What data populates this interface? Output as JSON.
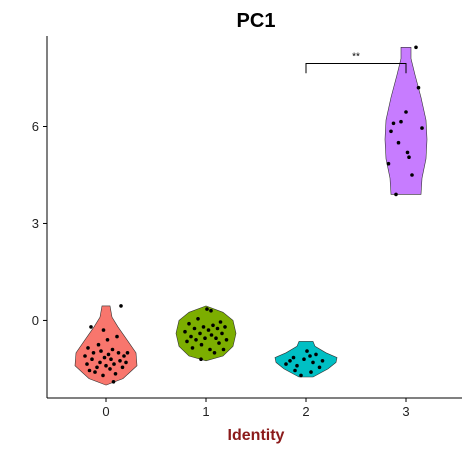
{
  "chart_data": {
    "type": "violin",
    "title": "PC1",
    "xlabel": "Identity",
    "ylabel": "",
    "xlabel_color": "#8b1a1a",
    "categories": [
      "0",
      "1",
      "2",
      "3"
    ],
    "ylim": [
      -2.4,
      8.8
    ],
    "yticks": [
      0,
      3,
      6
    ],
    "yticks_labels": [
      "0",
      "3",
      "6"
    ],
    "grid": false,
    "legend": "none",
    "colors": [
      "#f8766d",
      "#7cae00",
      "#00bfc4",
      "#c77cff"
    ],
    "violins": [
      {
        "category": "0",
        "min": -2.0,
        "max": 0.45,
        "profile": [
          [
            -2.0,
            0.0
          ],
          [
            -1.8,
            0.34
          ],
          [
            -1.4,
            0.62
          ],
          [
            -1.0,
            0.6
          ],
          [
            -0.6,
            0.42
          ],
          [
            -0.2,
            0.24
          ],
          [
            0.1,
            0.12
          ],
          [
            0.45,
            0.08
          ]
        ],
        "points": [
          [
            -0.42,
            -1.1
          ],
          [
            -0.38,
            -1.35
          ],
          [
            -0.36,
            -0.85
          ],
          [
            -0.33,
            -1.55
          ],
          [
            -0.3,
            -0.2
          ],
          [
            -0.28,
            -1.2
          ],
          [
            -0.25,
            -1.0
          ],
          [
            -0.22,
            -1.6
          ],
          [
            -0.18,
            -1.45
          ],
          [
            -0.15,
            -0.75
          ],
          [
            -0.12,
            -1.3
          ],
          [
            -0.1,
            -0.95
          ],
          [
            -0.06,
            -1.7
          ],
          [
            -0.03,
            -1.15
          ],
          [
            0.0,
            -1.4
          ],
          [
            0.03,
            -0.6
          ],
          [
            0.05,
            -1.05
          ],
          [
            0.08,
            -1.5
          ],
          [
            0.1,
            -1.2
          ],
          [
            0.13,
            -0.9
          ],
          [
            0.16,
            -1.35
          ],
          [
            0.19,
            -1.65
          ],
          [
            0.22,
            -0.5
          ],
          [
            0.25,
            -1.0
          ],
          [
            0.28,
            -1.25
          ],
          [
            0.3,
            0.45
          ],
          [
            0.33,
            -1.45
          ],
          [
            0.36,
            -1.1
          ],
          [
            0.4,
            -1.3
          ],
          [
            0.43,
            -1.0
          ],
          [
            -0.05,
            -0.3
          ],
          [
            0.15,
            -1.9
          ]
        ]
      },
      {
        "category": "1",
        "min": -1.25,
        "max": 0.45,
        "profile": [
          [
            -1.25,
            0.0
          ],
          [
            -1.1,
            0.34
          ],
          [
            -0.8,
            0.54
          ],
          [
            -0.4,
            0.6
          ],
          [
            0.0,
            0.54
          ],
          [
            0.25,
            0.34
          ],
          [
            0.45,
            0.0
          ]
        ],
        "points": [
          [
            -0.42,
            -0.35
          ],
          [
            -0.38,
            -0.65
          ],
          [
            -0.34,
            -0.1
          ],
          [
            -0.3,
            -0.5
          ],
          [
            -0.27,
            -0.85
          ],
          [
            -0.23,
            -0.25
          ],
          [
            -0.2,
            -0.6
          ],
          [
            -0.16,
            0.05
          ],
          [
            -0.12,
            -0.4
          ],
          [
            -0.09,
            -0.75
          ],
          [
            -0.05,
            -0.2
          ],
          [
            -0.02,
            -0.55
          ],
          [
            0.02,
            0.35
          ],
          [
            0.05,
            -0.3
          ],
          [
            0.08,
            -0.9
          ],
          [
            0.11,
            -0.45
          ],
          [
            0.14,
            -0.15
          ],
          [
            0.17,
            -1.0
          ],
          [
            0.2,
            -0.55
          ],
          [
            0.23,
            -0.25
          ],
          [
            0.26,
            -0.7
          ],
          [
            0.29,
            -0.05
          ],
          [
            0.32,
            -0.4
          ],
          [
            0.35,
            -0.9
          ],
          [
            0.38,
            -0.2
          ],
          [
            0.41,
            -0.6
          ],
          [
            -0.1,
            -1.2
          ],
          [
            0.1,
            0.3
          ]
        ]
      },
      {
        "category": "2",
        "min": -1.75,
        "max": -0.65,
        "profile": [
          [
            -1.75,
            0.14
          ],
          [
            -1.5,
            0.44
          ],
          [
            -1.3,
            0.6
          ],
          [
            -1.15,
            0.62
          ],
          [
            -1.0,
            0.4
          ],
          [
            -0.8,
            0.18
          ],
          [
            -0.65,
            0.14
          ]
        ],
        "points": [
          [
            -0.4,
            -1.35
          ],
          [
            -0.32,
            -1.25
          ],
          [
            -0.25,
            -1.15
          ],
          [
            -0.18,
            -1.4
          ],
          [
            -0.1,
            -1.7
          ],
          [
            -0.04,
            -1.2
          ],
          [
            0.02,
            -0.95
          ],
          [
            0.08,
            -1.1
          ],
          [
            0.14,
            -1.3
          ],
          [
            0.2,
            -1.05
          ],
          [
            0.27,
            -1.45
          ],
          [
            0.33,
            -1.25
          ],
          [
            -0.22,
            -1.55
          ],
          [
            0.1,
            -1.6
          ]
        ]
      },
      {
        "category": "3",
        "min": 3.9,
        "max": 8.45,
        "profile": [
          [
            3.9,
            0.3
          ],
          [
            4.4,
            0.32
          ],
          [
            5.0,
            0.4
          ],
          [
            5.6,
            0.42
          ],
          [
            6.2,
            0.4
          ],
          [
            6.9,
            0.3
          ],
          [
            7.6,
            0.18
          ],
          [
            8.1,
            0.1
          ],
          [
            8.45,
            0.1
          ]
        ],
        "points": [
          [
            -0.35,
            4.85
          ],
          [
            -0.3,
            5.85
          ],
          [
            -0.25,
            6.1
          ],
          [
            -0.2,
            3.9
          ],
          [
            -0.1,
            6.15
          ],
          [
            0.0,
            6.45
          ],
          [
            0.03,
            5.2
          ],
          [
            0.06,
            5.05
          ],
          [
            0.12,
            4.5
          ],
          [
            0.2,
            8.45
          ],
          [
            0.25,
            7.2
          ],
          [
            0.32,
            5.95
          ],
          [
            -0.15,
            5.5
          ]
        ]
      }
    ],
    "significance": {
      "from_category": "2",
      "to_category": "3",
      "y": 7.95,
      "drop": 0.3,
      "label": "**"
    }
  }
}
